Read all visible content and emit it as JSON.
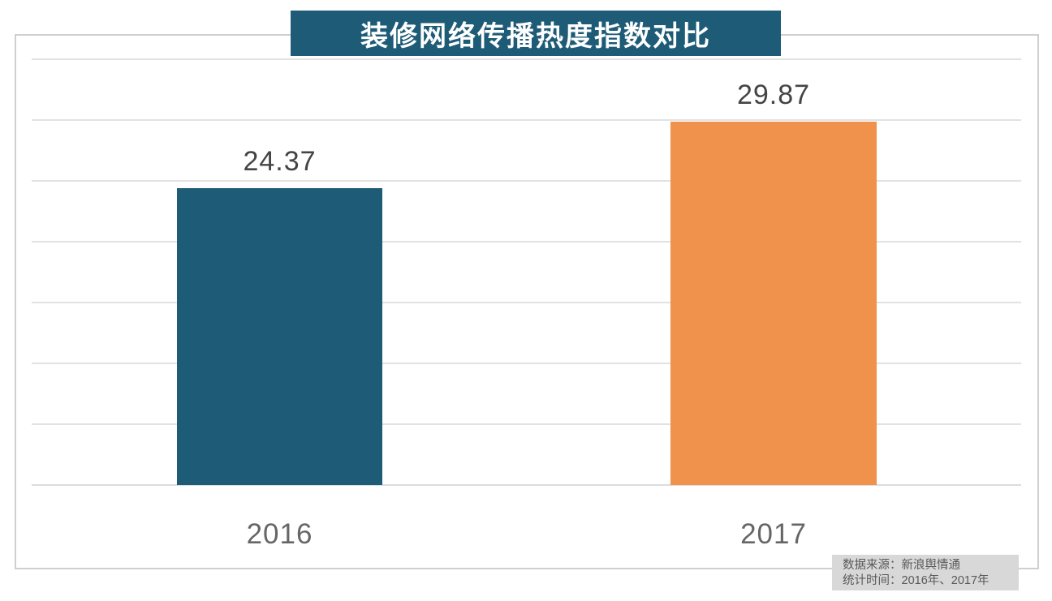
{
  "title": {
    "text": "装修网络传播热度指数对比",
    "background": "#1E5B76",
    "text_color": "#FFFFFF"
  },
  "source_note": {
    "line1": "数据来源：新浪舆情通",
    "line2": "统计时间：2016年、2017年",
    "background": "#D8D8D8",
    "text_color": "#595959"
  },
  "colors": {
    "bar_2016": "#1E5B76",
    "bar_2017": "#F0924B",
    "gridline": "#E2E2E2",
    "frame_border": "#CFCFCF",
    "value_label": "#444444",
    "axis_label": "#666666"
  },
  "chart_data": {
    "type": "bar",
    "title": "装修网络传播热度指数对比",
    "categories": [
      "2016",
      "2017"
    ],
    "values": [
      24.37,
      29.87
    ],
    "value_labels": [
      "24.37",
      "29.87"
    ],
    "bar_colors": [
      "#1E5B76",
      "#F0924B"
    ],
    "xlabel": "",
    "ylabel": "",
    "ylim": [
      0,
      35
    ],
    "grid_step": 5,
    "grid": true,
    "legend": "none",
    "annotations": [
      "数据来源：新浪舆情通",
      "统计时间：2016年、2017年"
    ]
  }
}
